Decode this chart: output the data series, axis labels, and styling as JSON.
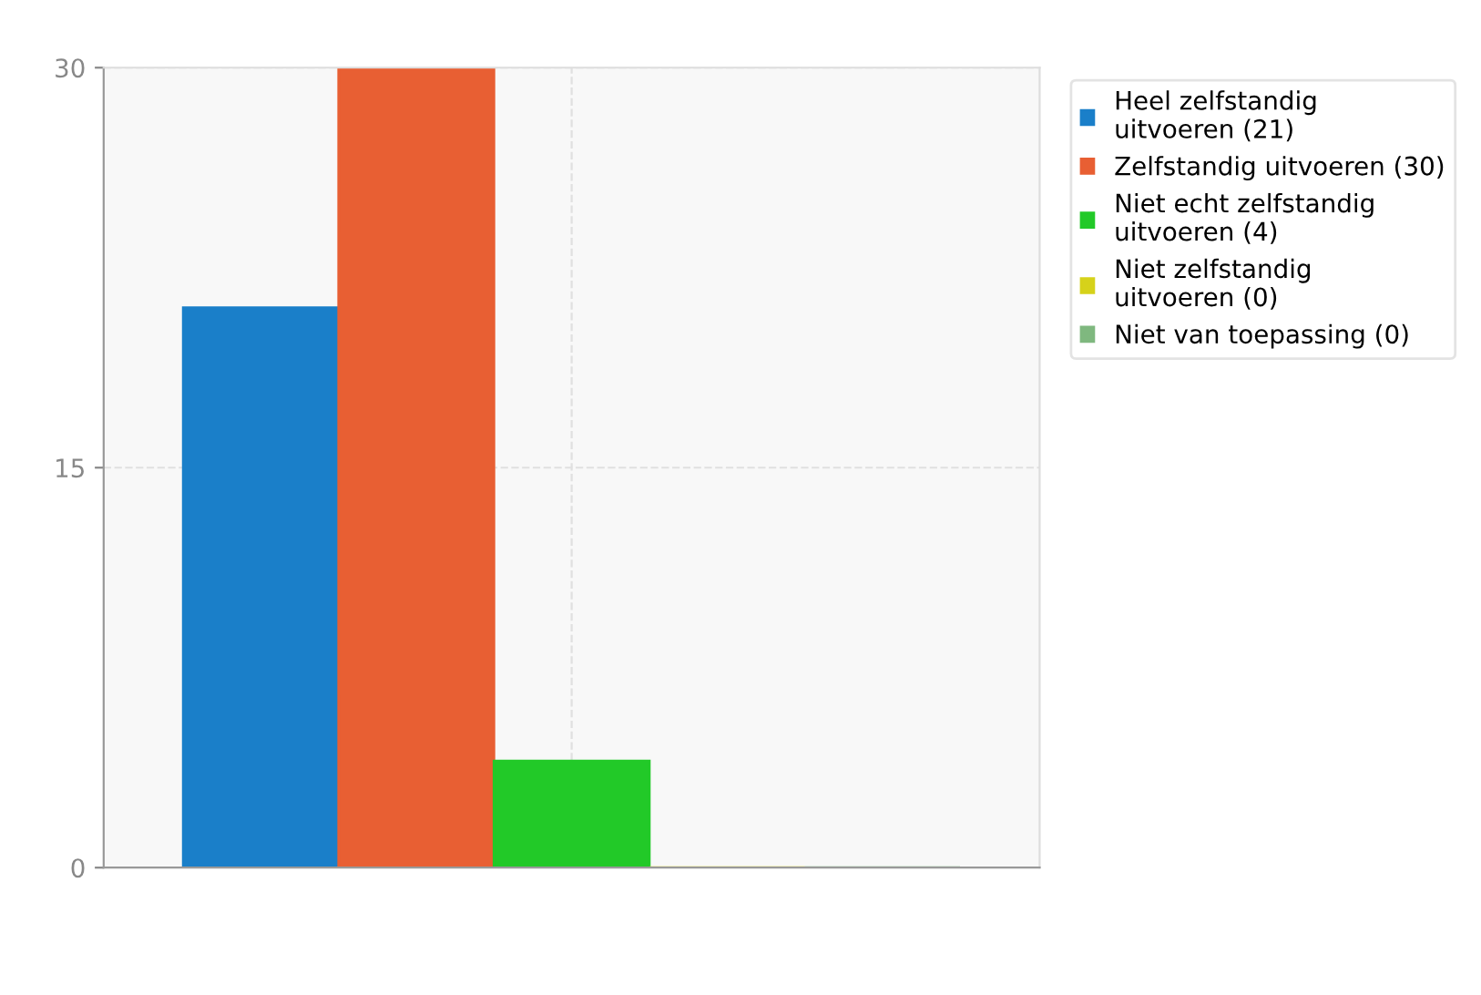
{
  "chart_data": {
    "type": "bar",
    "categories": [
      null
    ],
    "series": [
      {
        "name": "Heel zelfstandig\nuitvoeren (21)",
        "color": "#1a7fc9",
        "values": [
          21
        ]
      },
      {
        "name": "Zelfstandig uitvoeren (30)",
        "color": "#e85f33",
        "values": [
          30
        ]
      },
      {
        "name": "Niet echt zelfstandig\nuitvoeren (4)",
        "color": "#22c928",
        "values": [
          4
        ]
      },
      {
        "name": "Niet zelfstandig\nuitvoeren (0)",
        "color": "#d6d21a",
        "values": [
          0
        ]
      },
      {
        "name": "Niet van toepassing (0)",
        "color": "#7fb87f",
        "values": [
          0
        ]
      }
    ],
    "ylim": [
      0,
      30
    ],
    "yticks": [
      0,
      15,
      30
    ],
    "grid": true,
    "legend": "top right"
  }
}
